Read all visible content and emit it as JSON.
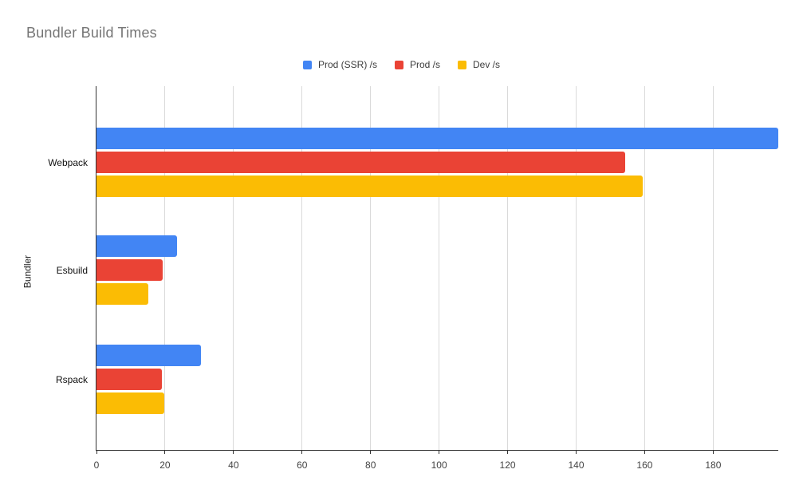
{
  "window": {
    "background": "#ffffff"
  },
  "chart_data": {
    "type": "bar",
    "orientation": "horizontal",
    "title": "Bundler Build Times",
    "categories": [
      "Webpack",
      "Esbuild",
      "Rspack"
    ],
    "series": [
      {
        "name": "Prod (SSR) /s",
        "color": "#4285F4",
        "values": [
          199,
          23.5,
          30.5
        ]
      },
      {
        "name": "Prod /s",
        "color": "#EA4335",
        "values": [
          154.4,
          19.3,
          19.1
        ]
      },
      {
        "name": "Dev /s",
        "color": "#FBBC04",
        "values": [
          159.5,
          15.2,
          19.7
        ]
      }
    ],
    "xlabel": "",
    "ylabel": "Bundler",
    "xlim": [
      0,
      199
    ],
    "xticks": [
      0,
      20,
      40,
      60,
      80,
      100,
      120,
      140,
      160,
      180
    ],
    "grid": true,
    "legend_position": "top",
    "colors": {
      "title_text": "#757575",
      "axis_text": "#444444",
      "category_text": "#111111",
      "legend_text": "#3c3c3c",
      "gridline": "#dadada",
      "axis_line": "#333333",
      "background": "#ffffff"
    }
  }
}
